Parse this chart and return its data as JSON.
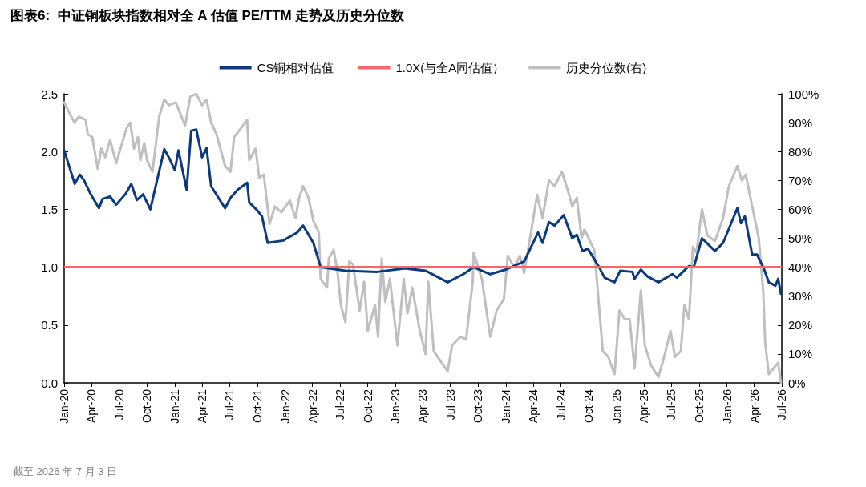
{
  "chart_data": {
    "type": "line",
    "title": "图表6:  中证铜板块指数相对全 A 估值 PE/TTM 走势及历史分位数",
    "annotations": [
      "截至 2026 年 7 月 3 日"
    ],
    "xlim": [
      "2020-01-01",
      "2026-07-01"
    ],
    "xticks": [
      {
        "value": "2020-01-01",
        "label": "Jan-20"
      },
      {
        "value": "2020-04-01",
        "label": "Apr-20"
      },
      {
        "value": "2020-07-01",
        "label": "Jul-20"
      },
      {
        "value": "2020-10-01",
        "label": "Oct-20"
      },
      {
        "value": "2021-01-01",
        "label": "Jan-21"
      },
      {
        "value": "2021-04-01",
        "label": "Apr-21"
      },
      {
        "value": "2021-07-01",
        "label": "Jul-21"
      },
      {
        "value": "2021-10-01",
        "label": "Oct-21"
      },
      {
        "value": "2022-01-01",
        "label": "Jan-22"
      },
      {
        "value": "2022-04-01",
        "label": "Apr-22"
      },
      {
        "value": "2022-07-01",
        "label": "Jul-22"
      },
      {
        "value": "2022-10-01",
        "label": "Oct-22"
      },
      {
        "value": "2023-01-01",
        "label": "Jan-23"
      },
      {
        "value": "2023-04-01",
        "label": "Apr-23"
      },
      {
        "value": "2023-07-01",
        "label": "Jul-23"
      },
      {
        "value": "2023-10-01",
        "label": "Oct-23"
      },
      {
        "value": "2024-01-01",
        "label": "Jan-24"
      },
      {
        "value": "2024-04-01",
        "label": "Apr-24"
      },
      {
        "value": "2024-07-01",
        "label": "Jul-24"
      },
      {
        "value": "2024-10-01",
        "label": "Oct-24"
      },
      {
        "value": "2025-01-01",
        "label": "Jan-25"
      },
      {
        "value": "2025-04-01",
        "label": "Apr-25"
      },
      {
        "value": "2025-07-01",
        "label": "Jul-25"
      },
      {
        "value": "2025-10-01",
        "label": "Oct-25"
      },
      {
        "value": "2026-01-01",
        "label": "Jan-26"
      },
      {
        "value": "2026-04-01",
        "label": "Apr-26"
      },
      {
        "value": "2026-07-01",
        "label": "Jul-26"
      }
    ],
    "ylim": [
      0,
      2.5
    ],
    "yticks": [
      {
        "value": 0,
        "label": "0.0"
      },
      {
        "value": 0.5,
        "label": "0.5"
      },
      {
        "value": 1,
        "label": "1.0"
      },
      {
        "value": 1.5,
        "label": "1.5"
      },
      {
        "value": 2,
        "label": "2.0"
      },
      {
        "value": 2.5,
        "label": "2.5"
      }
    ],
    "y2lim": [
      0,
      100
    ],
    "y2ticks": [
      {
        "value": 0,
        "label": "0%"
      },
      {
        "value": 10,
        "label": "10%"
      },
      {
        "value": 20,
        "label": "20%"
      },
      {
        "value": 30,
        "label": "30%"
      },
      {
        "value": 40,
        "label": "40%"
      },
      {
        "value": 50,
        "label": "50%"
      },
      {
        "value": 60,
        "label": "60%"
      },
      {
        "value": 70,
        "label": "70%"
      },
      {
        "value": 80,
        "label": "80%"
      },
      {
        "value": 90,
        "label": "90%"
      },
      {
        "value": 100,
        "label": "100%"
      }
    ],
    "grid": false,
    "legend": "top",
    "marker": "none",
    "line_style": "solid",
    "ref_lines": [
      {
        "axis": "y",
        "value": 1,
        "label": "1.0X(与全A同估值）",
        "color": "#f4676a"
      }
    ],
    "series": [
      {
        "name": "CS铜相对估值",
        "color": "#0b3a7e",
        "x": [
          "2020-01-01",
          "2020-02-05",
          "2020-02-22",
          "2020-03-07",
          "2020-03-27",
          "2020-04-25",
          "2020-05-07",
          "2020-06-01",
          "2020-06-21",
          "2020-07-21",
          "2020-08-10",
          "2020-08-28",
          "2020-09-18",
          "2020-10-12",
          "2020-11-27",
          "2020-12-12",
          "2021-01-01",
          "2021-01-13",
          "2021-02-09",
          "2021-02-24",
          "2021-03-13",
          "2021-04-01",
          "2021-04-16",
          "2021-05-01",
          "2021-06-16",
          "2021-07-04",
          "2021-07-28",
          "2021-08-28",
          "2021-09-04",
          "2021-10-01",
          "2021-10-16",
          "2021-11-04",
          "2021-12-25",
          "2022-02-10",
          "2022-03-01",
          "2022-04-04",
          "2022-04-28",
          "2022-07-19",
          "2022-11-01",
          "2023-02-01",
          "2023-04-10",
          "2023-06-22",
          "2023-08-13",
          "2023-09-16",
          "2023-11-10",
          "2024-01-01",
          "2024-03-01",
          "2024-04-16",
          "2024-05-01",
          "2024-05-22",
          "2024-06-10",
          "2024-07-10",
          "2024-08-07",
          "2024-08-22",
          "2024-09-10",
          "2024-09-28",
          "2024-11-04",
          "2024-11-22",
          "2024-12-25",
          "2025-01-13",
          "2025-02-22",
          "2025-03-01",
          "2025-03-22",
          "2025-04-13",
          "2025-05-19",
          "2025-07-04",
          "2025-07-19",
          "2025-08-28",
          "2025-09-13",
          "2025-10-10",
          "2025-11-22",
          "2025-12-19",
          "2026-02-04",
          "2026-02-16",
          "2026-03-01",
          "2026-03-25",
          "2026-04-10",
          "2026-05-01",
          "2026-05-19",
          "2026-06-10",
          "2026-06-19",
          "2026-06-28"
        ],
        "values": [
          2.01,
          1.72,
          1.8,
          1.75,
          1.64,
          1.51,
          1.59,
          1.61,
          1.54,
          1.63,
          1.72,
          1.58,
          1.63,
          1.5,
          2.02,
          1.95,
          1.84,
          2.01,
          1.67,
          2.18,
          2.19,
          1.95,
          2.03,
          1.7,
          1.51,
          1.6,
          1.67,
          1.73,
          1.56,
          1.49,
          1.44,
          1.21,
          1.23,
          1.3,
          1.36,
          1.21,
          1.0,
          0.97,
          0.96,
          0.99,
          0.97,
          0.87,
          0.94,
          1.0,
          0.94,
          0.98,
          1.05,
          1.3,
          1.21,
          1.39,
          1.36,
          1.45,
          1.25,
          1.28,
          1.14,
          1.16,
          1.0,
          0.91,
          0.87,
          0.97,
          0.96,
          0.9,
          0.98,
          0.92,
          0.87,
          0.94,
          0.91,
          1.01,
          1.0,
          1.25,
          1.14,
          1.21,
          1.51,
          1.38,
          1.44,
          1.11,
          1.11,
          1.0,
          0.87,
          0.84,
          0.9,
          0.77
        ]
      },
      {
        "name": "历史分位数(右)",
        "color": "#bfbfbf",
        "axis": "y2",
        "x": [
          "2020-01-01",
          "2020-02-04",
          "2020-02-18",
          "2020-03-12",
          "2020-03-19",
          "2020-04-03",
          "2020-04-21",
          "2020-05-03",
          "2020-05-16",
          "2020-06-01",
          "2020-06-21",
          "2020-07-25",
          "2020-08-07",
          "2020-08-19",
          "2020-09-01",
          "2020-09-09",
          "2020-09-22",
          "2020-10-01",
          "2020-10-19",
          "2020-11-10",
          "2020-11-27",
          "2020-12-12",
          "2021-01-04",
          "2021-02-04",
          "2021-02-21",
          "2021-03-13",
          "2021-04-01",
          "2021-04-16",
          "2021-05-01",
          "2021-05-19",
          "2021-06-16",
          "2021-07-04",
          "2021-07-16",
          "2021-08-07",
          "2021-08-28",
          "2021-09-04",
          "2021-09-25",
          "2021-10-07",
          "2021-10-22",
          "2021-11-10",
          "2021-11-28",
          "2021-12-19",
          "2022-01-16",
          "2022-02-04",
          "2022-02-16",
          "2022-03-01",
          "2022-03-19",
          "2022-04-04",
          "2022-04-22",
          "2022-04-28",
          "2022-05-19",
          "2022-05-25",
          "2022-06-10",
          "2022-06-22",
          "2022-07-04",
          "2022-07-19",
          "2022-08-01",
          "2022-08-13",
          "2022-09-04",
          "2022-09-19",
          "2022-10-01",
          "2022-10-25",
          "2022-11-04",
          "2022-11-16",
          "2022-11-28",
          "2022-12-13",
          "2023-01-07",
          "2023-01-28",
          "2023-02-09",
          "2023-02-25",
          "2023-03-22",
          "2023-04-10",
          "2023-04-19",
          "2023-05-07",
          "2023-06-22",
          "2023-07-07",
          "2023-08-04",
          "2023-08-22",
          "2023-09-13",
          "2023-09-16",
          "2023-10-13",
          "2023-11-10",
          "2023-12-01",
          "2023-12-25",
          "2024-01-07",
          "2024-01-28",
          "2024-02-16",
          "2024-03-01",
          "2024-03-22",
          "2024-04-13",
          "2024-05-01",
          "2024-05-22",
          "2024-06-10",
          "2024-07-04",
          "2024-07-25",
          "2024-08-07",
          "2024-08-22",
          "2024-09-07",
          "2024-09-16",
          "2024-10-19",
          "2024-10-28",
          "2024-11-16",
          "2024-12-04",
          "2024-12-25",
          "2025-01-10",
          "2025-01-28",
          "2025-02-13",
          "2025-03-01",
          "2025-03-22",
          "2025-04-04",
          "2025-04-25",
          "2025-05-19",
          "2025-06-07",
          "2025-06-28",
          "2025-07-13",
          "2025-08-01",
          "2025-08-13",
          "2025-08-28",
          "2025-09-10",
          "2025-09-22",
          "2025-10-10",
          "2025-10-28",
          "2025-11-22",
          "2025-12-19",
          "2026-01-07",
          "2026-02-04",
          "2026-02-19",
          "2026-03-04",
          "2026-03-25",
          "2026-04-16",
          "2026-05-01",
          "2026-05-07",
          "2026-05-19",
          "2026-06-19",
          "2026-06-28"
        ],
        "values": [
          97,
          90,
          92,
          91,
          86,
          85,
          74,
          81,
          78,
          84,
          76,
          88,
          90,
          81,
          85,
          77,
          83,
          77,
          73,
          92,
          98,
          96,
          97,
          89,
          99,
          100,
          96,
          98,
          90,
          86,
          75,
          73,
          85,
          88,
          91,
          77,
          81,
          71,
          72,
          55,
          61,
          59,
          63,
          57,
          64,
          68,
          64,
          56,
          52,
          36,
          33,
          43,
          46,
          39,
          27,
          21,
          42,
          41,
          25,
          35,
          18,
          27,
          16,
          43,
          28,
          36,
          13,
          36,
          24,
          33,
          18,
          10,
          35,
          11,
          4,
          13,
          16,
          15,
          35,
          45,
          36,
          16,
          25,
          29,
          44,
          40,
          44,
          38,
          51,
          65,
          57,
          70,
          68,
          73,
          66,
          61,
          64,
          50,
          53,
          46,
          35,
          11,
          9,
          3,
          25,
          22,
          22,
          5,
          32,
          13,
          6,
          2,
          9,
          18,
          9,
          11,
          27,
          22,
          47,
          45,
          60,
          51,
          49,
          57,
          68,
          75,
          70,
          72,
          61,
          50,
          31,
          14,
          3,
          7,
          0
        ]
      }
    ]
  }
}
